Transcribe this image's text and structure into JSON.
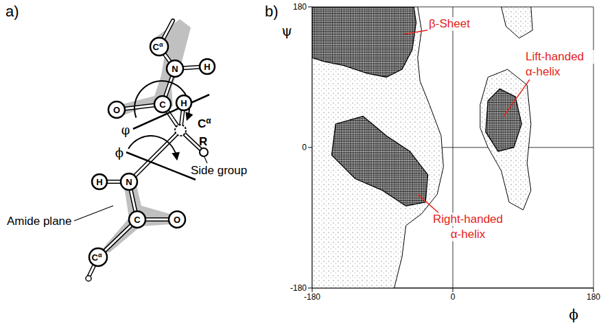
{
  "diagram": {
    "label": "a)",
    "atoms": [
      "Cα",
      "N",
      "H",
      "C",
      "H",
      "O",
      "Cα",
      "R",
      "H",
      "N",
      "C",
      "O",
      "Cα"
    ],
    "angle_labels": [
      "φ",
      "ϕ"
    ],
    "labels": [
      "Side group",
      "Amide plane"
    ]
  },
  "chart_data": {
    "type": "scatter",
    "label": "b)",
    "xlabel": "ϕ",
    "ylabel": "ψ",
    "xlim": [
      -180,
      180
    ],
    "ylim": [
      -180,
      180
    ],
    "xticks": [
      -180,
      0,
      180
    ],
    "yticks": [
      -180,
      0,
      180
    ],
    "grid": true,
    "allowed_regions": [
      [
        [
          -180,
          180
        ],
        [
          -45,
          180
        ],
        [
          -40,
          150
        ],
        [
          -45,
          115
        ],
        [
          -42,
          85
        ],
        [
          -30,
          55
        ],
        [
          -15,
          15
        ],
        [
          -12,
          -25
        ],
        [
          -20,
          -60
        ],
        [
          -40,
          -85
        ],
        [
          -60,
          -100
        ],
        [
          -65,
          -140
        ],
        [
          -75,
          -180
        ],
        [
          -180,
          -180
        ]
      ],
      [
        [
          35,
          55
        ],
        [
          45,
          90
        ],
        [
          70,
          100
        ],
        [
          95,
          80
        ],
        [
          100,
          30
        ],
        [
          95,
          -20
        ],
        [
          100,
          -55
        ],
        [
          90,
          -80
        ],
        [
          72,
          -70
        ],
        [
          62,
          -30
        ],
        [
          45,
          0
        ],
        [
          35,
          25
        ]
      ],
      [
        [
          62,
          180
        ],
        [
          100,
          180
        ],
        [
          102,
          150
        ],
        [
          85,
          140
        ],
        [
          68,
          155
        ]
      ]
    ],
    "favored_regions": [
      [
        [
          -180,
          180
        ],
        [
          -50,
          180
        ],
        [
          -47,
          160
        ],
        [
          -52,
          125
        ],
        [
          -65,
          100
        ],
        [
          -85,
          90
        ],
        [
          -110,
          95
        ],
        [
          -140,
          105
        ],
        [
          -165,
          110
        ],
        [
          -180,
          115
        ]
      ],
      [
        [
          -150,
          30
        ],
        [
          -115,
          40
        ],
        [
          -85,
          15
        ],
        [
          -55,
          -5
        ],
        [
          -32,
          -35
        ],
        [
          -35,
          -70
        ],
        [
          -60,
          -75
        ],
        [
          -90,
          -55
        ],
        [
          -125,
          -40
        ],
        [
          -155,
          -10
        ]
      ],
      [
        [
          42,
          20
        ],
        [
          45,
          60
        ],
        [
          60,
          75
        ],
        [
          80,
          65
        ],
        [
          88,
          30
        ],
        [
          78,
          0
        ],
        [
          58,
          -5
        ]
      ]
    ],
    "annotations": [
      {
        "text": "β-Sheet",
        "x": -62,
        "y": 145
      },
      {
        "text": "Lift-handed α-helix",
        "x": 65,
        "y": 40
      },
      {
        "text": "Right-handed α-helix",
        "x": -45,
        "y": -60
      }
    ]
  }
}
